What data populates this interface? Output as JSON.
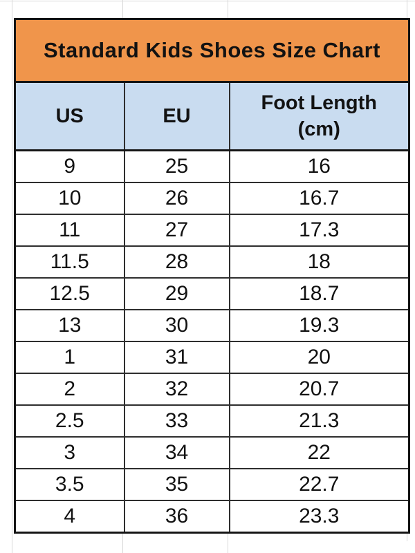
{
  "chart_data": {
    "type": "table",
    "title": "Standard Kids Shoes Size Chart",
    "columns": [
      "US",
      "EU",
      "Foot Length (cm)"
    ],
    "rows": [
      [
        "9",
        "25",
        "16"
      ],
      [
        "10",
        "26",
        "16.7"
      ],
      [
        "11",
        "27",
        "17.3"
      ],
      [
        "11.5",
        "28",
        "18"
      ],
      [
        "12.5",
        "29",
        "18.7"
      ],
      [
        "13",
        "30",
        "19.3"
      ],
      [
        "1",
        "31",
        "20"
      ],
      [
        "2",
        "32",
        "20.7"
      ],
      [
        "2.5",
        "33",
        "21.3"
      ],
      [
        "3",
        "34",
        "22"
      ],
      [
        "3.5",
        "35",
        "22.7"
      ],
      [
        "4",
        "36",
        "23.3"
      ]
    ]
  },
  "table_header": {
    "col1": "US",
    "col2": "EU",
    "col3_line1": "Foot Length",
    "col3_line2": "(cm)"
  },
  "colors": {
    "title_bg": "#F0954B",
    "header_bg": "#C9DCF0",
    "outer_border": "#141414",
    "inner_border": "#2E2E2E",
    "text": "#121212",
    "sheet_gridline": "#D8D8D8"
  }
}
